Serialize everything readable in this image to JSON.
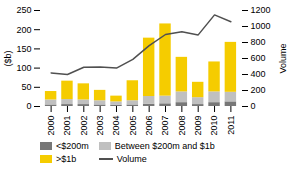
{
  "chart_data": {
    "type": "bar",
    "stacked": true,
    "categories": [
      "2000",
      "2001",
      "2002",
      "2003",
      "2004",
      "2005",
      "2006",
      "2007",
      "2008",
      "2009",
      "2010",
      "2011"
    ],
    "series": [
      {
        "name": "<$200m",
        "color": "#777777",
        "values": [
          4,
          5,
          5,
          4,
          3,
          4,
          6,
          7,
          10,
          5,
          10,
          12
        ]
      },
      {
        "name": "Between $200m and $1b",
        "color": "#c0c0c0",
        "values": [
          13,
          13,
          12,
          11,
          9,
          11,
          20,
          20,
          28,
          18,
          28,
          25
        ]
      },
      {
        "name": ">$1b",
        "color": "#f5cc00",
        "values": [
          22,
          48,
          42,
          27,
          15,
          52,
          152,
          188,
          90,
          40,
          78,
          130
        ]
      },
      {
        "name": "Volume",
        "type": "line",
        "axis": "y2",
        "color": "#505050",
        "values": [
          420,
          400,
          490,
          495,
          480,
          590,
          760,
          900,
          935,
          895,
          1145,
          1060
        ]
      }
    ],
    "ylabel": "($b)",
    "y2label": "Volume",
    "ylim": [
      0,
      250
    ],
    "yticks": [
      0,
      50,
      100,
      150,
      200,
      250
    ],
    "y2lim": [
      0,
      1200
    ],
    "y2ticks": [
      0,
      200,
      400,
      600,
      800,
      1000,
      1200
    ],
    "grid": false,
    "legend": "bottom"
  }
}
